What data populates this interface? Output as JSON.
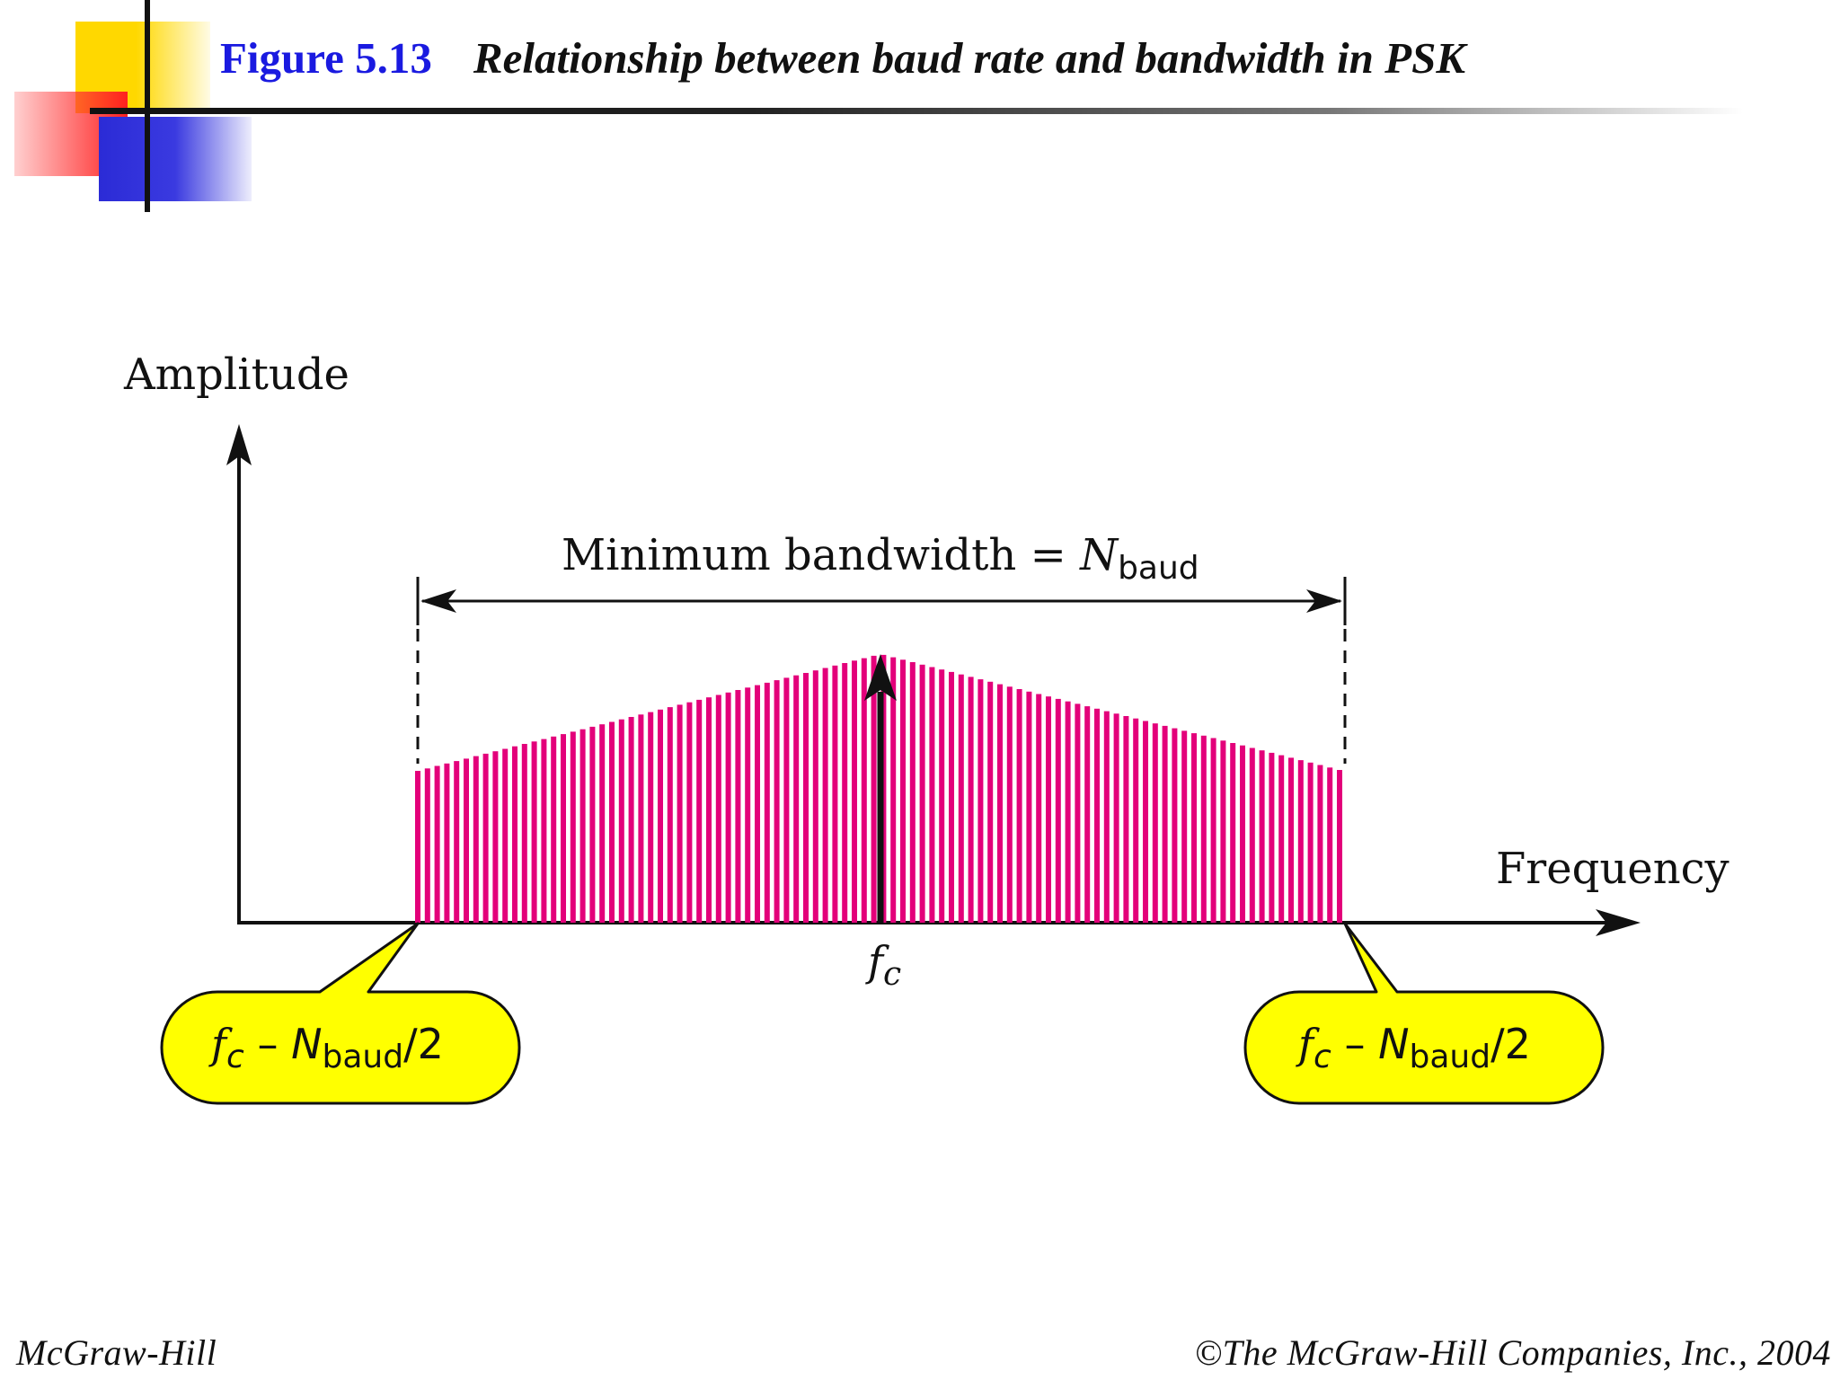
{
  "header": {
    "figure_label": "Figure 5.13",
    "caption": "Relationship between baud rate and bandwidth in PSK"
  },
  "diagram": {
    "y_axis_label": "Amplitude",
    "x_axis_label": "Frequency",
    "bandwidth_label_main": "Minimum bandwidth = ",
    "bandwidth_label_var": "N",
    "bandwidth_label_sub": "baud",
    "center_label_var": "f",
    "center_label_sub": "c",
    "callout_left": {
      "f": "f",
      "c": "c",
      "minus": " – ",
      "n": "N",
      "baud": "baud",
      "tail": "/2"
    },
    "callout_right": {
      "f": "f",
      "c": "c",
      "minus": " – ",
      "n": "N",
      "baud": "baud",
      "tail": "/2"
    },
    "colors": {
      "bars": "#e3007a",
      "callout_fill": "#ffff00",
      "ink": "#111111"
    }
  },
  "footer": {
    "left": "McGraw-Hill",
    "right": "©The McGraw-Hill Companies, Inc., 2004"
  }
}
